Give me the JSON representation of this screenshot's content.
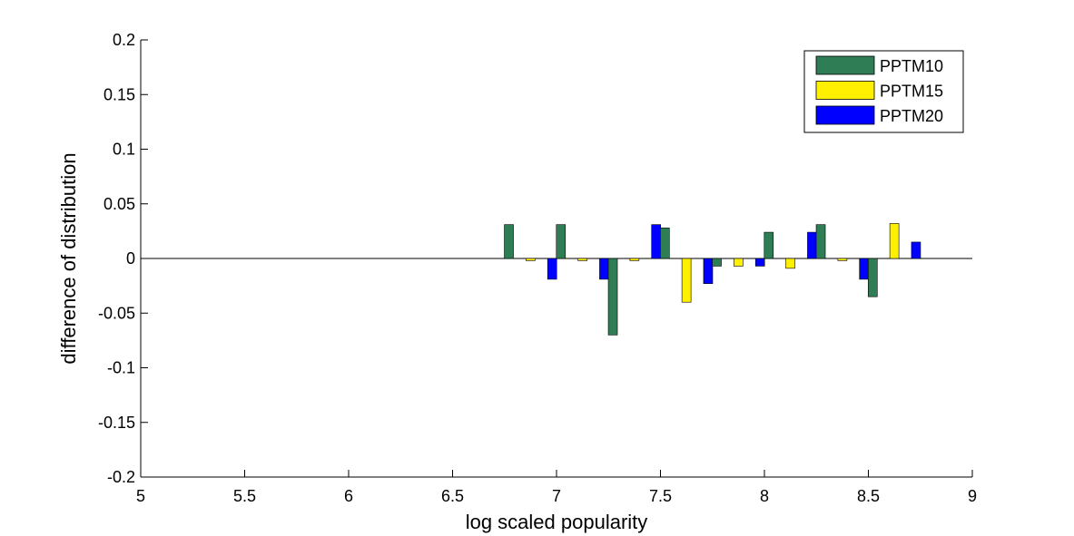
{
  "chart_data": {
    "type": "bar",
    "title": "",
    "xlabel": "log scaled popularity",
    "ylabel": "difference of distribution",
    "xlim": [
      5,
      9
    ],
    "ylim": [
      -0.2,
      0.2
    ],
    "xticks": [
      5,
      5.5,
      6,
      6.5,
      7,
      7.5,
      8,
      8.5,
      9
    ],
    "xtick_labels": [
      "5",
      "5.5",
      "6",
      "6.5",
      "7",
      "7.5",
      "8",
      "8.5",
      "9"
    ],
    "yticks": [
      -0.2,
      -0.15,
      -0.1,
      -0.05,
      0,
      0.05,
      0.1,
      0.15,
      0.2
    ],
    "ytick_labels": [
      "-0.2",
      "-0.15",
      "-0.1",
      "-0.05",
      "0",
      "0.05",
      "0.1",
      "0.15",
      "0.2"
    ],
    "grid": false,
    "legend_position": "top-right",
    "x": [
      6.875,
      7.125,
      7.375,
      7.625,
      7.875,
      8.125,
      8.375,
      8.625
    ],
    "series": [
      {
        "name": "PPTM10",
        "color": "#2e7d55",
        "values": [
          0.031,
          0.031,
          -0.07,
          0.028,
          -0.007,
          0.024,
          0.031,
          -0.035
        ]
      },
      {
        "name": "PPTM15",
        "color": "#ffef00",
        "values": [
          -0.002,
          -0.002,
          -0.002,
          -0.04,
          -0.007,
          -0.009,
          -0.002,
          0.032
        ]
      },
      {
        "name": "PPTM20",
        "color": "#0000ff",
        "values": [
          -0.019,
          -0.019,
          0.031,
          -0.023,
          -0.007,
          0.024,
          -0.019,
          0.015
        ]
      }
    ]
  }
}
